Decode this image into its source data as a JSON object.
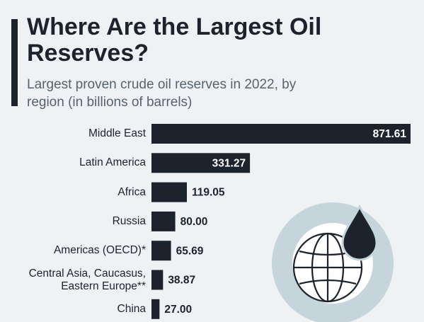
{
  "chart_data": {
    "type": "bar",
    "orientation": "horizontal",
    "title": "Where Are the Largest Oil Reserves?",
    "subtitle": "Largest proven crude oil reserves in 2022, by region (in billions of barrels)",
    "categories": [
      "Middle East",
      "Latin America",
      "Africa",
      "Russia",
      "Americas (OECD)*",
      "Central Asia, Caucasus, Eastern Europe**",
      "China"
    ],
    "values": [
      871.61,
      331.27,
      119.05,
      80.0,
      65.69,
      38.87,
      27.0
    ],
    "value_labels": [
      "871.61",
      "331.27",
      "119.05",
      "80.00",
      "65.69",
      "38.87",
      "27.00"
    ],
    "color": "#1d232d"
  }
}
